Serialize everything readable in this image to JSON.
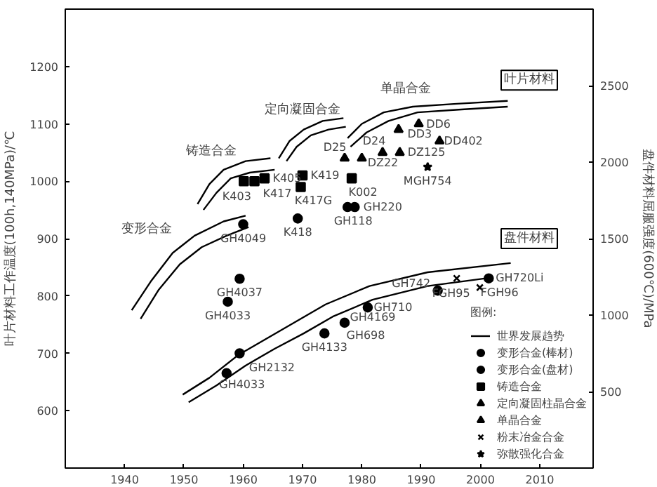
{
  "chart_data": {
    "type": "scatter",
    "ylabel": "叶片材料工作温度(100h,140MPa)/℃",
    "y2label": "盘件材料屈服强度(600℃)/MPa",
    "legend_title": "图例:",
    "xlim": [
      1930,
      2019
    ],
    "xticks": [
      1940,
      1950,
      1960,
      1970,
      1980,
      1990,
      2000,
      2010
    ],
    "ylim": [
      500,
      1300
    ],
    "yticks": [
      600,
      700,
      800,
      900,
      1000,
      1100,
      1200
    ],
    "y2lim": [
      0,
      3000
    ],
    "y2ticks": [
      500,
      1000,
      1500,
      2000,
      2500
    ],
    "grid": false,
    "legend": "bottom right",
    "series": [
      {
        "name": "世界发展趋势",
        "type": "line",
        "color": "#000000",
        "x": [
          1941.2,
          1944.4,
          1948.1,
          1951.8,
          1956.7,
          1960.4
        ],
        "values": [
          775,
          825,
          875,
          905,
          930,
          940
        ]
      },
      {
        "type": "line",
        "color": "#000000",
        "x": [
          1942.7,
          1945.7,
          1949.3,
          1953,
          1957.2,
          1960.9
        ],
        "values": [
          760,
          810,
          855,
          885,
          905,
          920
        ]
      },
      {
        "type": "line",
        "color": "#000000",
        "x": [
          1952.3,
          1954.3,
          1956.7,
          1960.4,
          1964.6
        ],
        "values": [
          960,
          995,
          1020,
          1035,
          1040
        ]
      },
      {
        "type": "line",
        "color": "#000000",
        "x": [
          1953.3,
          1955.5,
          1957.9,
          1961.1,
          1965.3
        ],
        "values": [
          950,
          980,
          1005,
          1015,
          1020
        ]
      },
      {
        "type": "line",
        "color": "#000000",
        "x": [
          1966,
          1967.8,
          1970.2,
          1973.4,
          1976.9
        ],
        "values": [
          1040,
          1070,
          1090,
          1105,
          1110
        ]
      },
      {
        "type": "line",
        "color": "#000000",
        "x": [
          1967.3,
          1969,
          1971.4,
          1974.4,
          1977.3
        ],
        "values": [
          1035,
          1060,
          1080,
          1090,
          1095
        ]
      },
      {
        "type": "line",
        "color": "#000000",
        "x": [
          1977.6,
          1980,
          1983.7,
          1988.6,
          1996,
          2004.6
        ],
        "values": [
          1075,
          1100,
          1120,
          1130,
          1135,
          1140
        ]
      },
      {
        "type": "line",
        "color": "#000000",
        "x": [
          1978.1,
          1980.8,
          1984.5,
          1989.4,
          1996.8,
          2004.6
        ],
        "values": [
          1060,
          1085,
          1105,
          1120,
          1125,
          1130
        ]
      },
      {
        "type": "line",
        "color": "#000000",
        "axis": "y2",
        "x": [
          1949.8,
          1954.3,
          1959.2,
          1964.1,
          1969,
          1973.9,
          1981.3,
          1991.1,
          2005.1
        ],
        "values": [
          480,
          590,
          740,
          850,
          960,
          1070,
          1190,
          1280,
          1340
        ]
      },
      {
        "type": "line",
        "color": "#000000",
        "axis": "y2",
        "x": [
          1950.8,
          1955.5,
          1960.4,
          1965.3,
          1970.2,
          1975.1,
          1981.8,
          1991.1,
          2000.9
        ],
        "values": [
          430,
          540,
          670,
          780,
          880,
          990,
          1100,
          1190,
          1240
        ]
      },
      {
        "name": "变形合金(棒材)",
        "color": "#000000",
        "marker": "circle",
        "x": [
          1960,
          1959.4,
          1957.4,
          1969.2,
          1977.6,
          1978.8
        ],
        "values": [
          925,
          830,
          790,
          935,
          955,
          955
        ]
      },
      {
        "name": "变形合金(盘材)",
        "color": "#000000",
        "marker": "circle",
        "axis": "y2",
        "x": [
          1957.2,
          1959.4,
          1973.7,
          1977.1,
          1981,
          1992.8,
          2001.4
        ],
        "values": [
          620,
          750,
          880,
          950,
          1050,
          1160,
          1240
        ]
      },
      {
        "name": "铸造合金",
        "color": "#000000",
        "marker": "square",
        "x": [
          1960.1,
          1961.9,
          1963.6,
          1970,
          1969.7,
          1978.3
        ],
        "values": [
          1000,
          1000,
          1005,
          1010,
          990,
          1005
        ]
      },
      {
        "name": "定向凝固柱晶合金",
        "color": "#000000",
        "marker": "triangle",
        "x": [
          1977.1,
          1980,
          1983.5,
          1986.4
        ],
        "values": [
          1040,
          1040,
          1050,
          1050
        ]
      },
      {
        "name": "单晶合金",
        "color": "#000000",
        "marker": "triangle",
        "x": [
          1986.2,
          1989.6,
          1993.1
        ],
        "values": [
          1090,
          1100,
          1070
        ]
      },
      {
        "name": "粉末冶金合金",
        "color": "#000000",
        "marker": "cross",
        "axis": "y2",
        "x": [
          1996,
          1999.9
        ],
        "values": [
          1240,
          1180
        ]
      },
      {
        "name": "弥散强化合金",
        "color": "#000000",
        "marker": "star",
        "x": [
          1991.1
        ],
        "values": [
          1025
        ]
      }
    ],
    "annotations": [
      "变形合金",
      "铸造合金",
      "定向凝固合金",
      "单晶合金",
      "叶片材料",
      "盘件材料",
      {
        "text": "K403",
        "x": 1960.1,
        "y": 1000
      },
      {
        "text": "K417",
        "x": 1963.6,
        "y": 1005
      },
      {
        "text": "K405",
        "x": 1963.6,
        "y": 1005
      },
      {
        "text": "K419",
        "x": 1970,
        "y": 1010
      },
      {
        "text": "K417G",
        "x": 1969.7,
        "y": 990
      },
      {
        "text": "K418",
        "x": 1969.2,
        "y": 935
      },
      {
        "text": "GH4049",
        "x": 1960,
        "y": 925
      },
      {
        "text": "GH4037",
        "x": 1959.4,
        "y": 830
      },
      {
        "text": "GH4033",
        "x": 1957.4,
        "y": 790
      },
      {
        "text": "K002",
        "x": 1978.3,
        "y": 1005
      },
      {
        "text": "GH220",
        "x": 1978.8,
        "y": 955
      },
      {
        "text": "GH118",
        "x": 1977.6,
        "y": 955
      },
      {
        "text": "D25",
        "x": 1977.1,
        "y": 1040
      },
      {
        "text": "DZ22",
        "x": 1980,
        "y": 1040
      },
      {
        "text": "D24",
        "x": 1983.5,
        "y": 1050
      },
      {
        "text": "DZ125",
        "x": 1986.4,
        "y": 1050
      },
      {
        "text": "DD3",
        "x": 1986.2,
        "y": 1090
      },
      {
        "text": "DD6",
        "x": 1989.6,
        "y": 1100
      },
      {
        "text": "DD402",
        "x": 1993.1,
        "y": 1070
      },
      {
        "text": "MGH754",
        "x": 1991.1,
        "y": 1025
      },
      {
        "text": "GH4033",
        "x": 1957.2,
        "y": 665
      },
      {
        "text": "GH2132",
        "x": 1959.4,
        "y": 700
      },
      {
        "text": "GH4133",
        "x": 1973.7,
        "y": 735
      },
      {
        "text": "GH698",
        "x": 1977.1,
        "y": 753
      },
      {
        "text": "GH4169",
        "x": 1977.1,
        "y": 753
      },
      {
        "text": "GH710",
        "x": 1981,
        "y": 780
      },
      {
        "text": "GH742",
        "x": 1992.8,
        "y": 809
      },
      {
        "text": "FGH95",
        "x": 1996,
        "y": 831
      },
      {
        "text": "FGH96",
        "x": 1999.9,
        "y": 815
      },
      {
        "text": "GH720Li",
        "x": 2001.4,
        "y": 831
      }
    ]
  }
}
